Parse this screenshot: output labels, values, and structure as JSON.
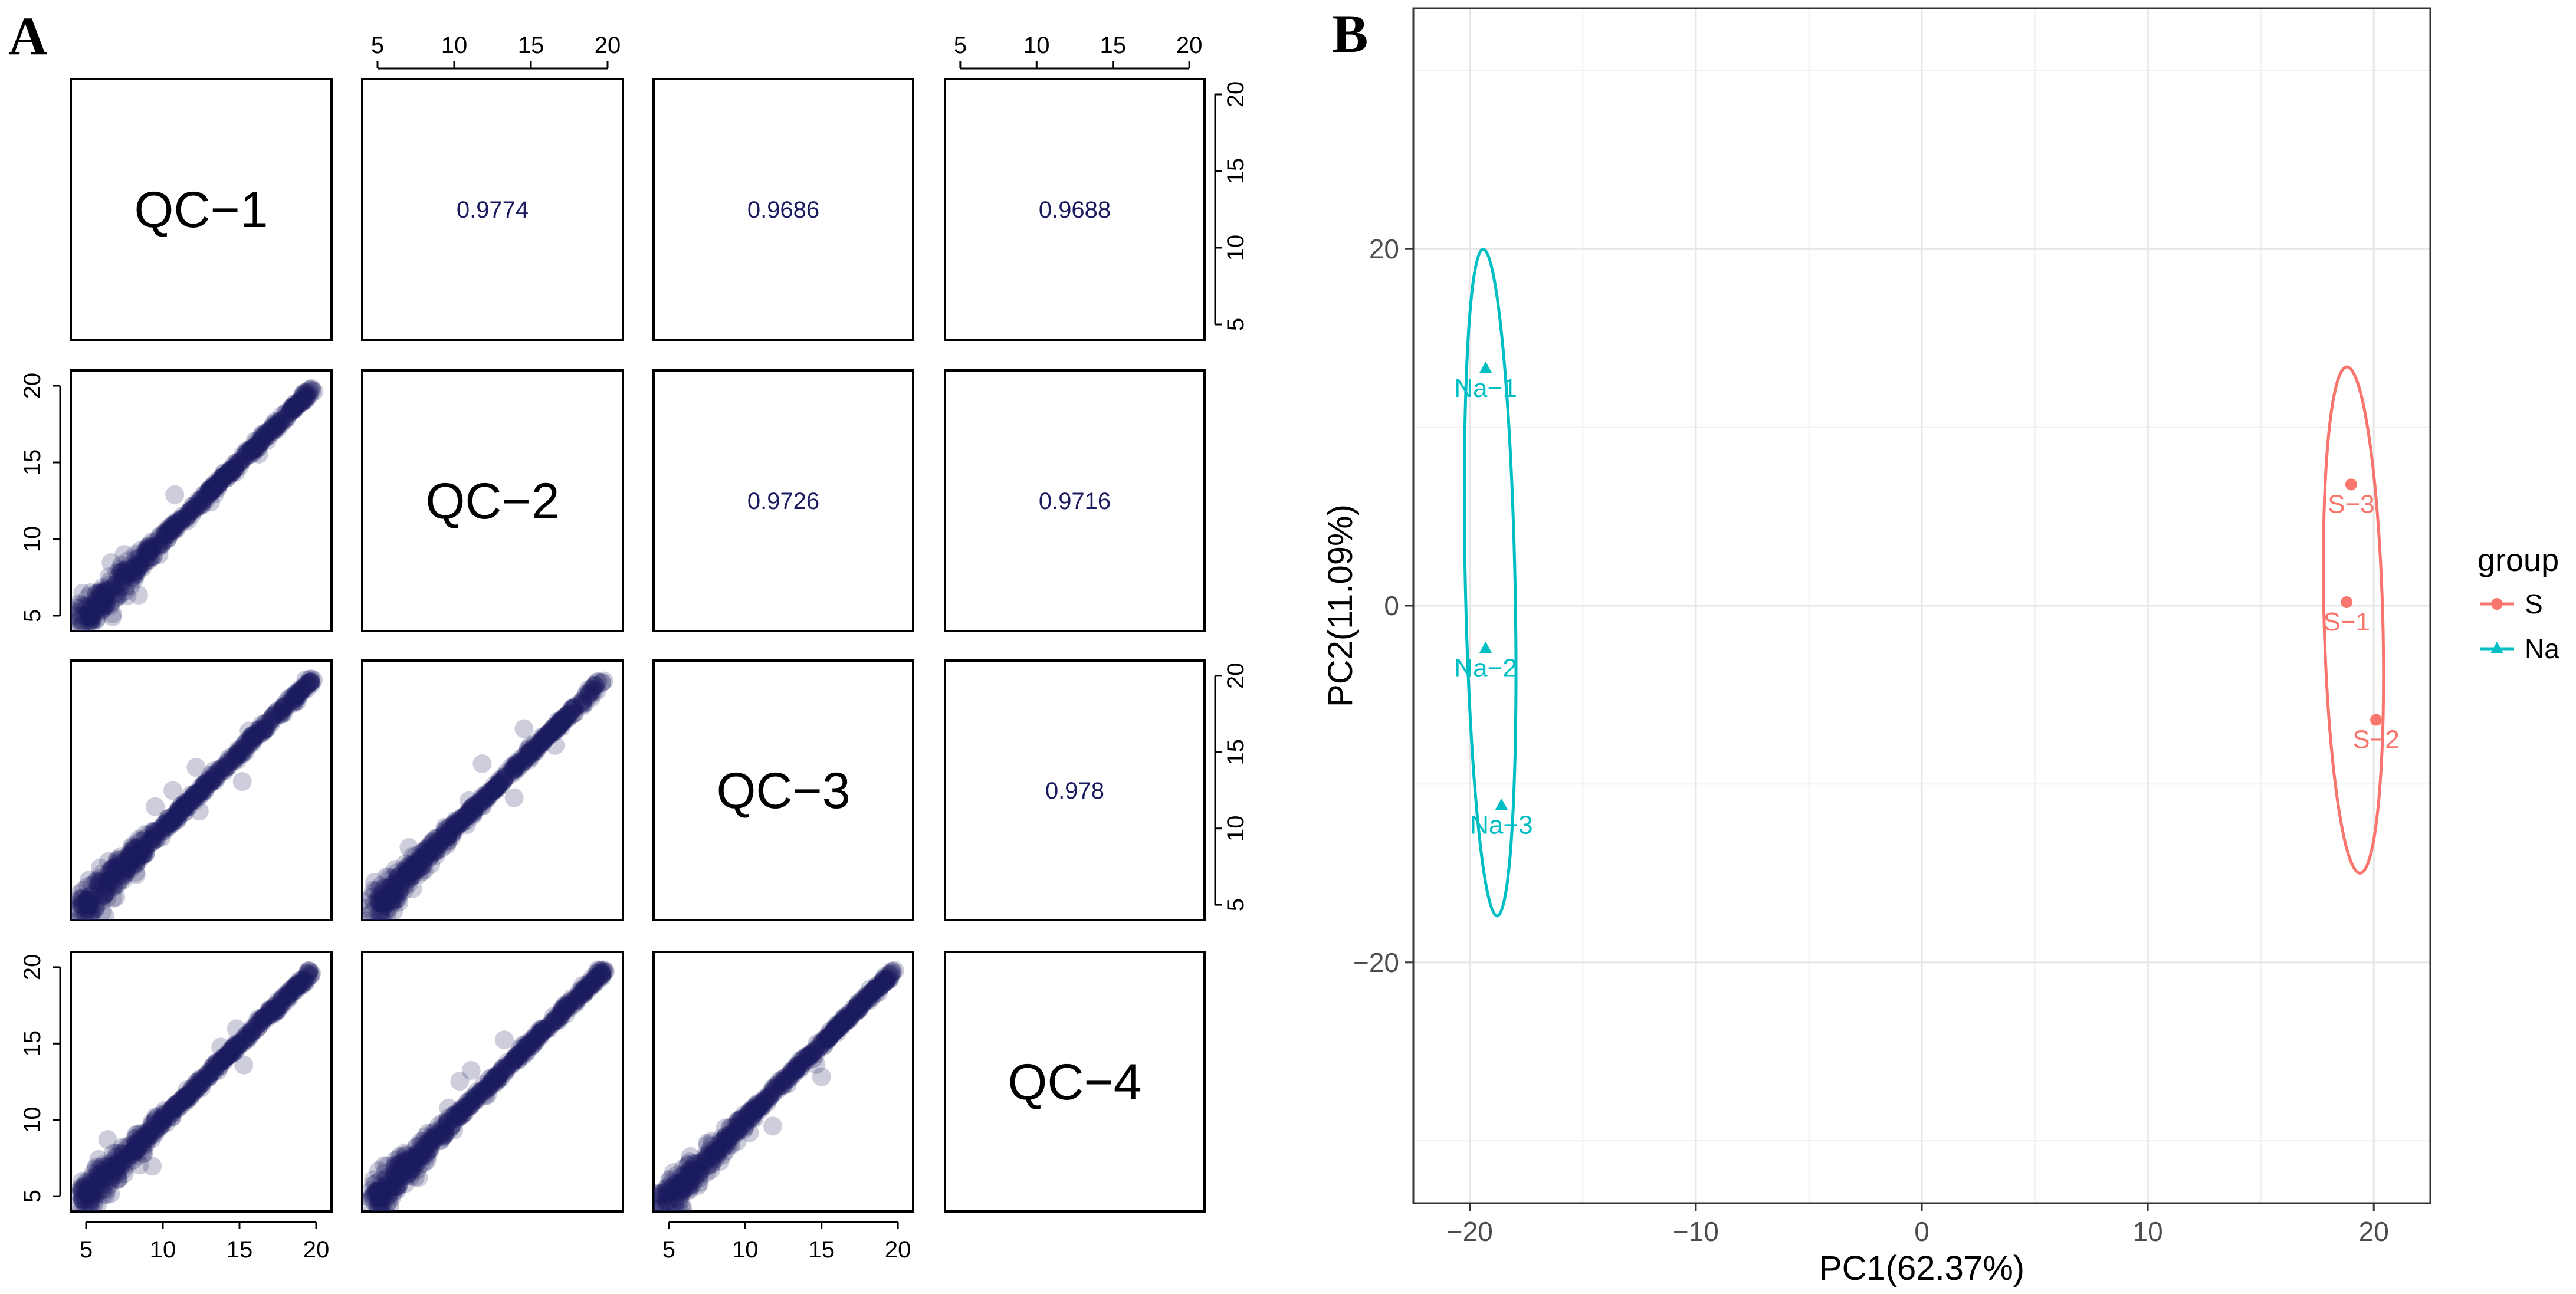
{
  "panel_labels": {
    "a": "A",
    "b": "B"
  },
  "chart_data": [
    {
      "type": "scatter-matrix",
      "panel": "A",
      "variables": [
        "QC−1",
        "QC−2",
        "QC−3",
        "QC−4"
      ],
      "correlations": [
        {
          "row": 0,
          "col": 1,
          "value": "0.9774"
        },
        {
          "row": 0,
          "col": 2,
          "value": "0.9686"
        },
        {
          "row": 0,
          "col": 3,
          "value": "0.9688"
        },
        {
          "row": 1,
          "col": 2,
          "value": "0.9726"
        },
        {
          "row": 1,
          "col": 3,
          "value": "0.9716"
        },
        {
          "row": 2,
          "col": 3,
          "value": "0.978"
        }
      ],
      "axis_range": [
        4,
        21
      ],
      "ticks": [
        "5",
        "10",
        "15",
        "20"
      ],
      "point_color": "#1a1a5e",
      "correlation_text_color": "#1a1a5e"
    },
    {
      "type": "scatter",
      "panel": "B",
      "xlabel": "PC1(62.37%)",
      "ylabel": "PC2(11.09%)",
      "xlim": [
        -22.5,
        22.5
      ],
      "ylim": [
        -33.5,
        33.5
      ],
      "xticks": [
        "−20",
        "−10",
        "0",
        "10",
        "20"
      ],
      "xtick_values": [
        -20,
        -10,
        0,
        10,
        20
      ],
      "yticks": [
        "−20",
        "0",
        "20"
      ],
      "ytick_values": [
        -20,
        0,
        20
      ],
      "grid": true,
      "legend": {
        "title": "group",
        "position": "right",
        "items": [
          {
            "label": "S",
            "color": "#f8766d",
            "shape": "circle"
          },
          {
            "label": "Na",
            "color": "#00bfc4",
            "shape": "triangle"
          }
        ]
      },
      "series": [
        {
          "name": "S",
          "color": "#f8766d",
          "points": [
            {
              "label": "S−1",
              "x": 18.8,
              "y": 0.2
            },
            {
              "label": "S−2",
              "x": 20.1,
              "y": -6.4
            },
            {
              "label": "S−3",
              "x": 19.0,
              "y": 6.8
            }
          ],
          "ellipse": {
            "cx": 19.1,
            "cy": -0.8,
            "rx": 1.3,
            "ry": 14.2
          }
        },
        {
          "name": "Na",
          "color": "#00bfc4",
          "points": [
            {
              "label": "Na−1",
              "x": -19.3,
              "y": 13.3
            },
            {
              "label": "Na−2",
              "x": -19.3,
              "y": -2.4
            },
            {
              "label": "Na−3",
              "x": -18.6,
              "y": -11.2
            }
          ],
          "ellipse": {
            "cx": -19.1,
            "cy": 1.3,
            "rx": 1.1,
            "ry": 18.7
          }
        }
      ]
    }
  ]
}
